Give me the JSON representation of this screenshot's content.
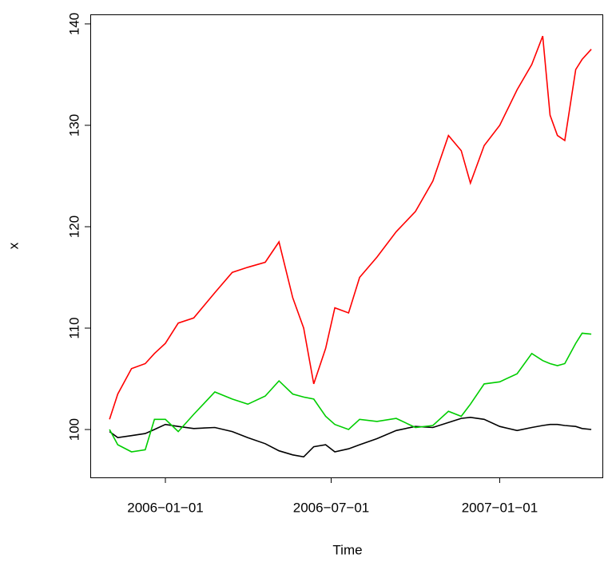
{
  "chart_data": {
    "type": "line",
    "xlabel": "Time",
    "ylabel": "x",
    "x": [
      "2005-11-01",
      "2005-11-10",
      "2005-11-25",
      "2005-12-10",
      "2005-12-20",
      "2006-01-01",
      "2006-01-15",
      "2006-02-01",
      "2006-02-24",
      "2006-03-15",
      "2006-04-01",
      "2006-04-20",
      "2006-05-05",
      "2006-05-20",
      "2006-06-01",
      "2006-06-12",
      "2006-06-25",
      "2006-07-05",
      "2006-07-20",
      "2006-08-01",
      "2006-08-20",
      "2006-09-10",
      "2006-10-01",
      "2006-10-20",
      "2006-11-06",
      "2006-11-20",
      "2006-11-30",
      "2006-12-15",
      "2007-01-01",
      "2007-01-20",
      "2007-02-05",
      "2007-02-17",
      "2007-02-25",
      "2007-03-05",
      "2007-03-13",
      "2007-03-25",
      "2007-04-01",
      "2007-04-11"
    ],
    "series": [
      {
        "color": "#000000",
        "values": [
          99.8,
          99.2,
          99.4,
          99.6,
          100,
          100.5,
          100.3,
          100.1,
          100.2,
          99.8,
          99.2,
          98.6,
          97.9,
          97.5,
          97.3,
          98.3,
          98.5,
          97.8,
          98.1,
          98.5,
          99.1,
          99.9,
          100.3,
          100.2,
          100.7,
          101.1,
          101.2,
          101,
          100.3,
          99.9,
          100.2,
          100.4,
          100.5,
          100.5,
          100.4,
          100.3,
          100.1,
          100
        ]
      },
      {
        "color": "#ff0000",
        "values": [
          101,
          103.5,
          106,
          106.5,
          107.5,
          108.5,
          110.5,
          111,
          113.5,
          115.5,
          116,
          116.5,
          118.5,
          113,
          110,
          104.5,
          108,
          112,
          111.5,
          115,
          117,
          119.5,
          121.5,
          124.5,
          129,
          127.5,
          124.3,
          128,
          130,
          133.5,
          136,
          138.8,
          131,
          129,
          128.5,
          135.5,
          136.5,
          137.5
        ]
      },
      {
        "color": "#00cd00",
        "values": [
          100,
          98.5,
          97.8,
          98,
          101,
          101,
          99.8,
          101.5,
          103.7,
          103,
          102.5,
          103.3,
          104.8,
          103.5,
          103.2,
          103,
          101.3,
          100.5,
          100,
          101,
          100.8,
          101.1,
          100.2,
          100.4,
          101.8,
          101.3,
          102.5,
          104.5,
          104.7,
          105.5,
          107.5,
          106.8,
          106.5,
          106.3,
          106.5,
          108.5,
          109.5,
          109.4
        ]
      }
    ],
    "xlim": [
      "2005-10-11",
      "2007-04-24"
    ],
    "xticks": [
      {
        "value": "2006-01-01",
        "label": "2006−01−01"
      },
      {
        "value": "2006-07-01",
        "label": "2006−07−01"
      },
      {
        "value": "2007-01-01",
        "label": "2007−01−01"
      }
    ],
    "ylim": [
      95.28,
      140.94
    ],
    "yticks": [
      100,
      110,
      120,
      130,
      140
    ]
  }
}
